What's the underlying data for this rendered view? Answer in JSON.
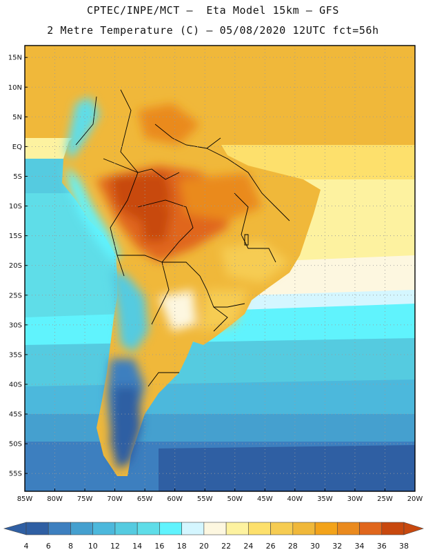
{
  "header": {
    "line1": "CPTEC/INPE/MCT –  Eta Model 15km – GFS",
    "line2": "2 Metre Temperature (C) – 05/08/2020 12UTC fct=56h"
  },
  "map": {
    "lat_ticks": [
      "15N",
      "10N",
      "5N",
      "EQ",
      "5S",
      "10S",
      "15S",
      "20S",
      "25S",
      "30S",
      "35S",
      "40S",
      "45S",
      "50S",
      "55S"
    ],
    "lon_ticks": [
      "85W",
      "80W",
      "75W",
      "70W",
      "65W",
      "60W",
      "55W",
      "50W",
      "45W",
      "40W",
      "35W",
      "30W",
      "25W",
      "20W"
    ],
    "lat_range": [
      -58,
      17
    ],
    "lon_range": [
      -85,
      -20
    ],
    "field": "2 Metre Temperature",
    "units": "C"
  },
  "colorbar": {
    "labels": [
      "4",
      "6",
      "8",
      "10",
      "12",
      "14",
      "16",
      "18",
      "20",
      "22",
      "24",
      "26",
      "28",
      "30",
      "32",
      "34",
      "36",
      "38"
    ],
    "colors": [
      "#2f5fa3",
      "#3d7fbf",
      "#45a0cf",
      "#4cb8dc",
      "#55cbe0",
      "#5fdde8",
      "#60f3fd",
      "#d4f6ff",
      "#fdf7e0",
      "#fdf2a0",
      "#fde06c",
      "#f6cc52",
      "#f0b83a",
      "#f3a31a",
      "#ea8a1e",
      "#e0661c",
      "#c8480e"
    ],
    "low_end_color": "#2f5fa3",
    "high_end_color": "#c8480e"
  }
}
